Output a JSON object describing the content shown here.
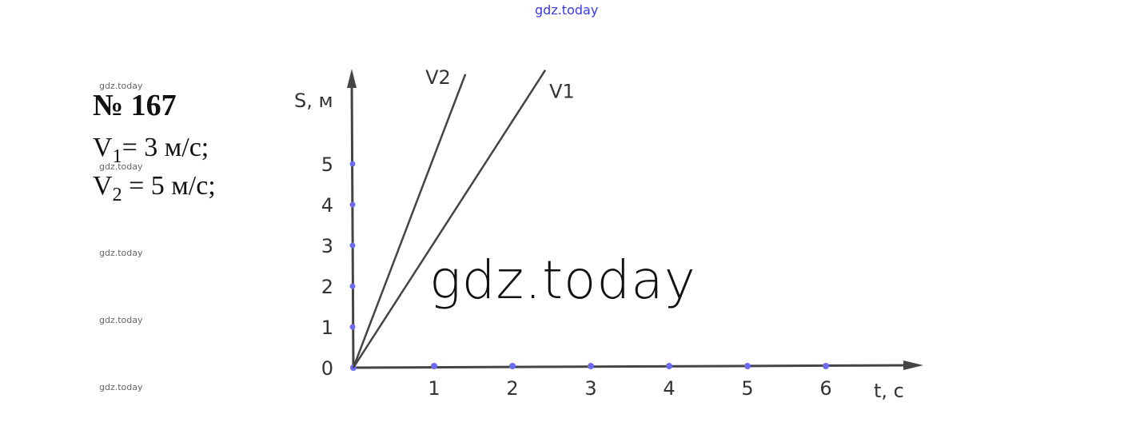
{
  "watermarks": {
    "top": "gdz.today",
    "small": [
      "gdz.today",
      "gdz.today",
      "gdz.today",
      "gdz.today",
      "gdz.today"
    ],
    "big": "gdz.today"
  },
  "problem": {
    "title": "№ 167",
    "v1_label": "V",
    "v1_sub": "1",
    "v1_rest": "= 3 м/с;",
    "v2_label": "V",
    "v2_sub": "2",
    "v2_rest": " = 5 м/с;"
  },
  "chart_data": {
    "type": "line",
    "xlabel": "t, с",
    "ylabel": "S, м",
    "xlim": [
      0,
      7.2
    ],
    "ylim": [
      0,
      7.5
    ],
    "xticks": [
      1,
      2,
      3,
      4,
      5,
      6
    ],
    "yticks": [
      0,
      1,
      2,
      3,
      4,
      5
    ],
    "origin_label": "0",
    "series": [
      {
        "name": "V1",
        "slope": 3,
        "points": [
          [
            0,
            0
          ],
          [
            2.45,
            7.3
          ]
        ]
      },
      {
        "name": "V2",
        "slope": 5,
        "points": [
          [
            0,
            0
          ],
          [
            1.43,
            7.2
          ]
        ]
      }
    ],
    "colors": {
      "axis": "#444444",
      "line": "#444444",
      "tick_marker": "#6b6bf0"
    }
  }
}
